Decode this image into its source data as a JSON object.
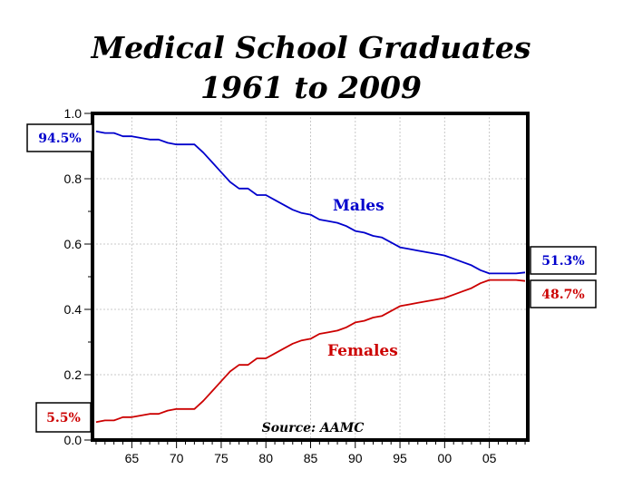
{
  "chart_data": {
    "type": "line",
    "title": "Medical School Graduates",
    "subtitle": "1961 to 2009",
    "source": "Source: AAMC",
    "xlabel": "",
    "ylabel": "",
    "xlim": [
      1961,
      2009
    ],
    "ylim": [
      0,
      1.0
    ],
    "x_tick_labels": [
      "65",
      "70",
      "75",
      "80",
      "85",
      "90",
      "95",
      "00",
      "05"
    ],
    "y_tick_labels": [
      "0.0",
      "0.2",
      "0.4",
      "0.6",
      "0.8",
      "1.0"
    ],
    "grid": true,
    "x": [
      1961,
      1962,
      1963,
      1964,
      1965,
      1966,
      1967,
      1968,
      1969,
      1970,
      1971,
      1972,
      1973,
      1974,
      1975,
      1976,
      1977,
      1978,
      1979,
      1980,
      1981,
      1982,
      1983,
      1984,
      1985,
      1986,
      1987,
      1988,
      1989,
      1990,
      1991,
      1992,
      1993,
      1994,
      1995,
      1996,
      1997,
      1998,
      1999,
      2000,
      2001,
      2002,
      2003,
      2004,
      2005,
      2006,
      2007,
      2008,
      2009
    ],
    "series": [
      {
        "name": "Males",
        "color": "#0000cc",
        "values": [
          0.945,
          0.94,
          0.94,
          0.93,
          0.93,
          0.925,
          0.92,
          0.92,
          0.91,
          0.905,
          0.905,
          0.905,
          0.88,
          0.85,
          0.82,
          0.79,
          0.77,
          0.77,
          0.75,
          0.75,
          0.735,
          0.72,
          0.705,
          0.695,
          0.69,
          0.675,
          0.67,
          0.665,
          0.655,
          0.64,
          0.635,
          0.625,
          0.62,
          0.605,
          0.59,
          0.585,
          0.58,
          0.575,
          0.57,
          0.565,
          0.555,
          0.545,
          0.535,
          0.52,
          0.51,
          0.51,
          0.51,
          0.51,
          0.513
        ]
      },
      {
        "name": "Females",
        "color": "#cc0000",
        "values": [
          0.055,
          0.06,
          0.06,
          0.07,
          0.07,
          0.075,
          0.08,
          0.08,
          0.09,
          0.095,
          0.095,
          0.095,
          0.12,
          0.15,
          0.18,
          0.21,
          0.23,
          0.23,
          0.25,
          0.25,
          0.265,
          0.28,
          0.295,
          0.305,
          0.31,
          0.325,
          0.33,
          0.335,
          0.345,
          0.36,
          0.365,
          0.375,
          0.38,
          0.395,
          0.41,
          0.415,
          0.42,
          0.425,
          0.43,
          0.435,
          0.445,
          0.455,
          0.465,
          0.48,
          0.49,
          0.49,
          0.49,
          0.49,
          0.487
        ]
      }
    ],
    "callouts": {
      "males_start": "94.5%",
      "females_start": "5.5%",
      "males_end": "51.3%",
      "females_end": "48.7%"
    }
  }
}
